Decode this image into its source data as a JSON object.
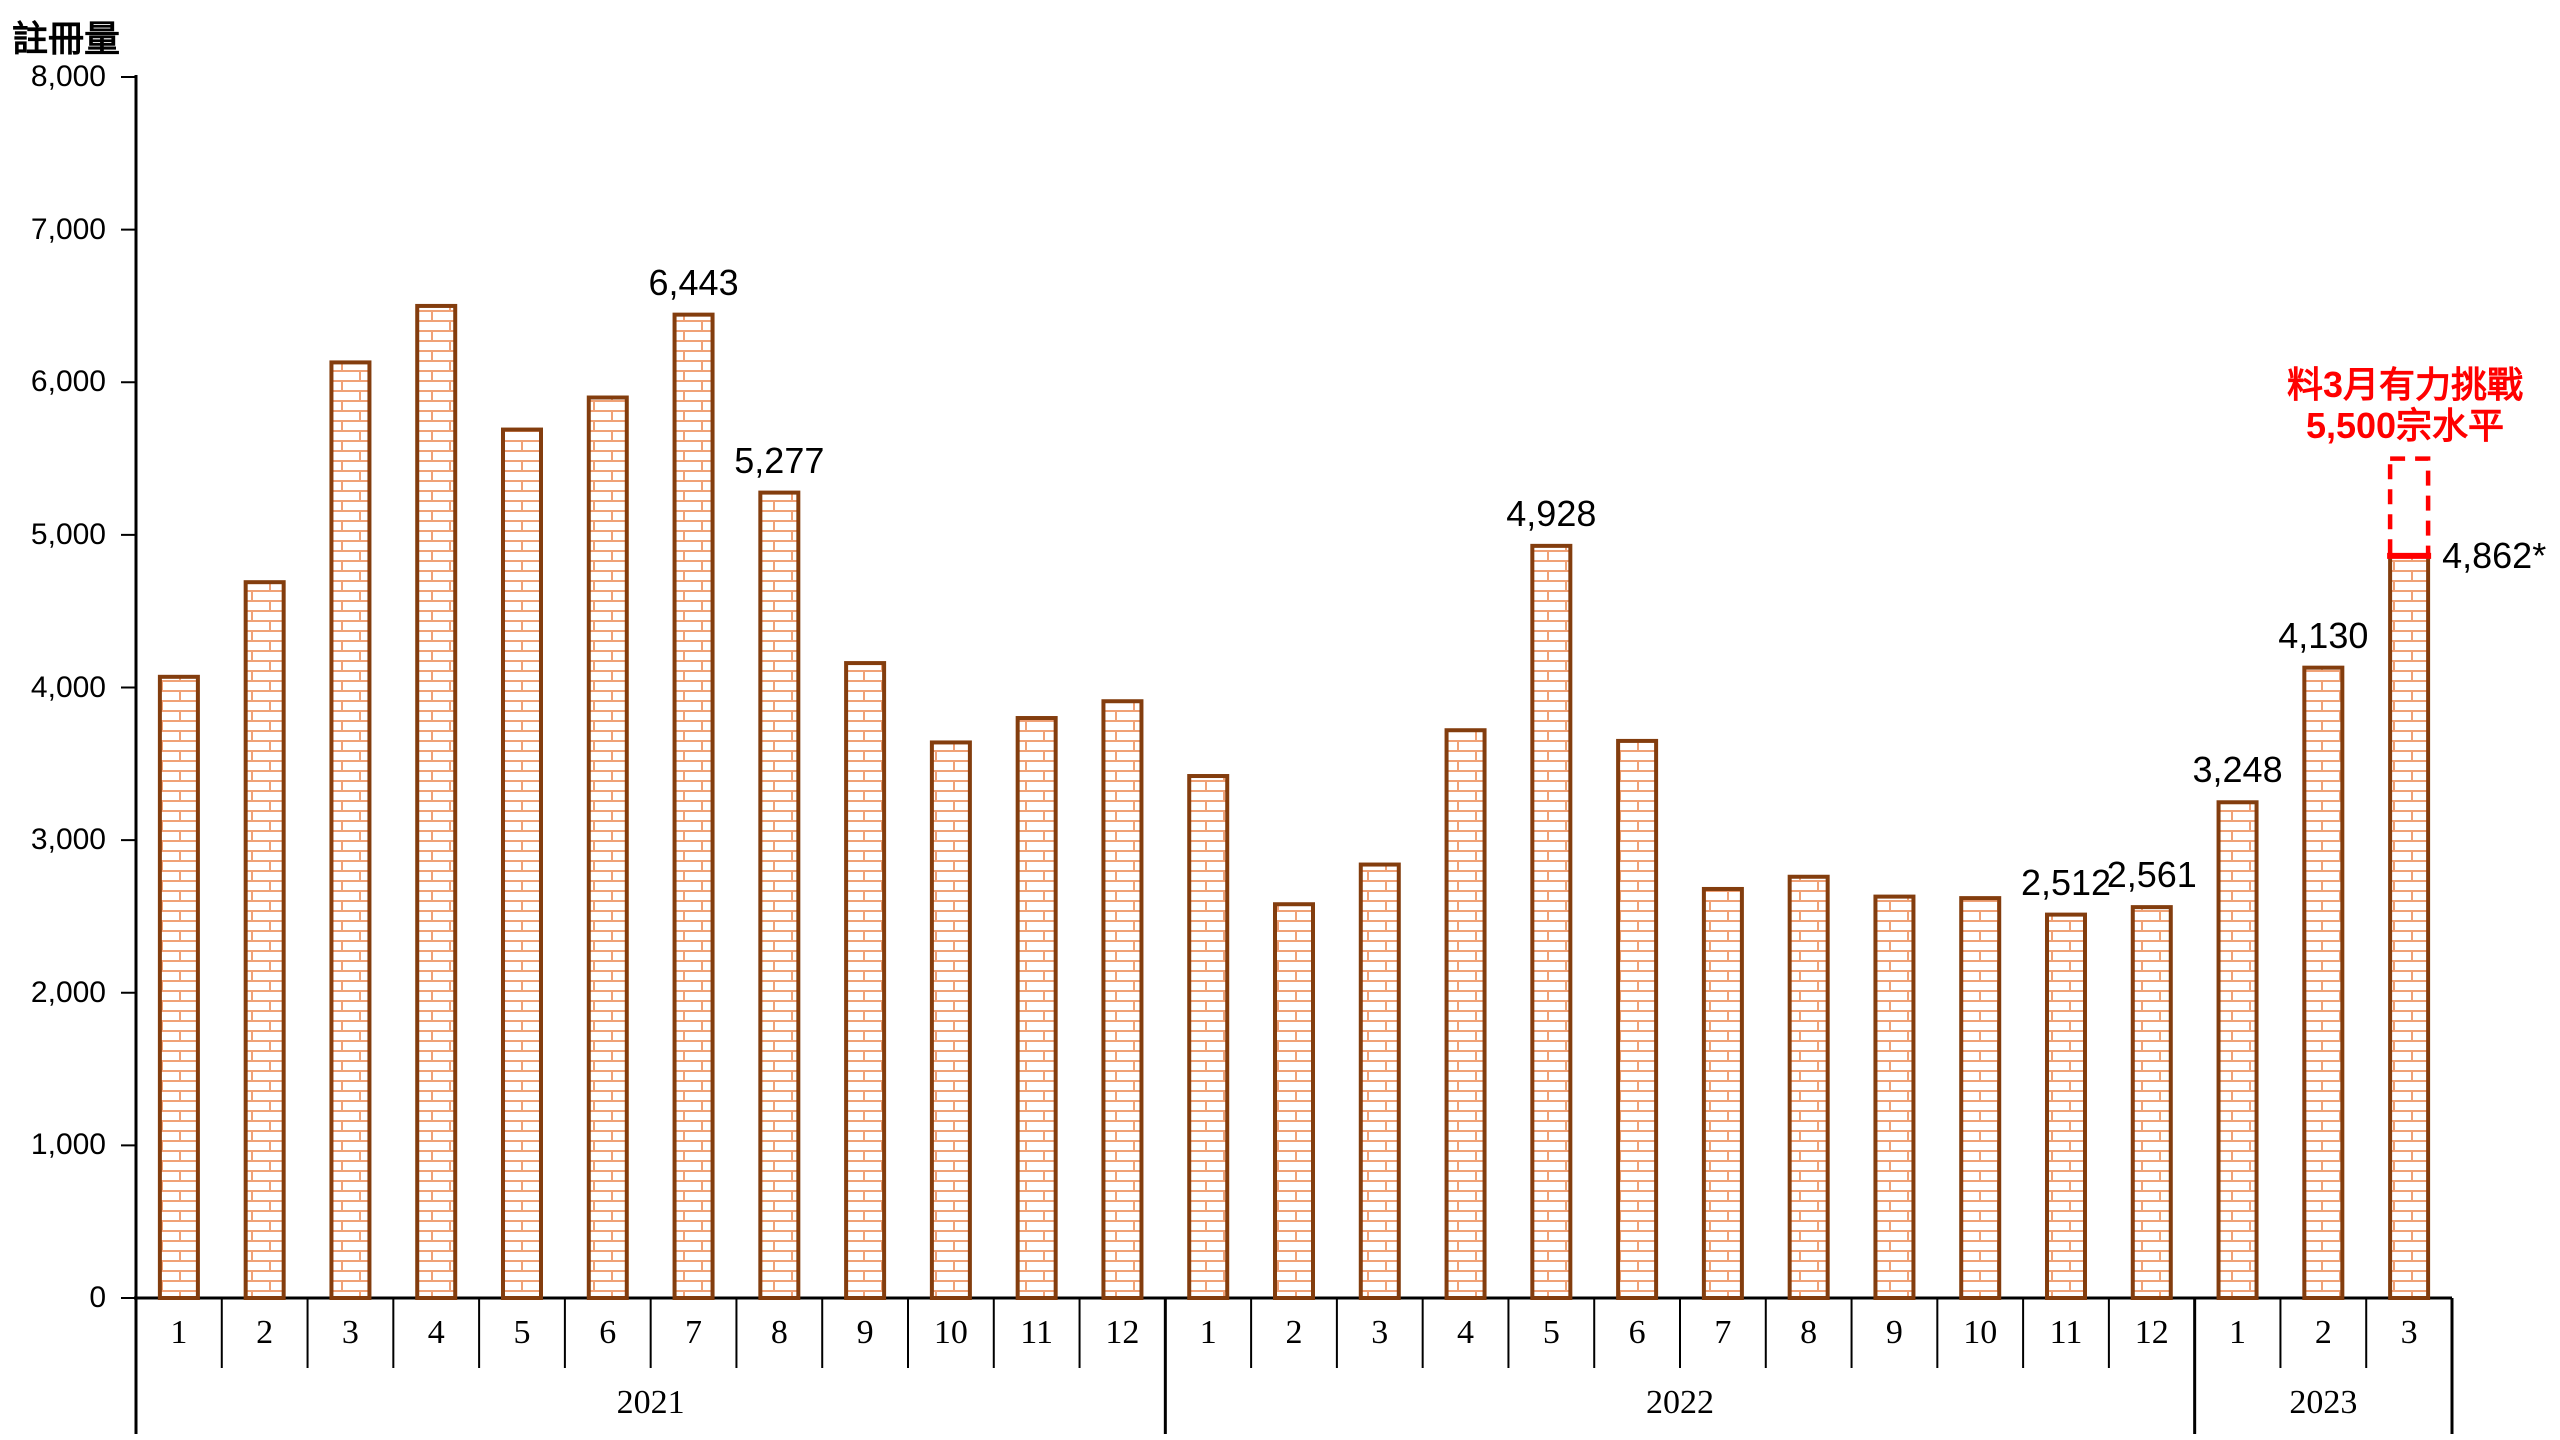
{
  "y_axis_title": "註冊量",
  "y_axis": {
    "tick_labels": [
      "0",
      "1,000",
      "2,000",
      "3,000",
      "4,000",
      "5,000",
      "6,000",
      "7,000",
      "8,000"
    ]
  },
  "chart_data": {
    "type": "bar",
    "ylabel": "註冊量",
    "ylim": [
      0,
      8000
    ],
    "ytick_interval": 1000,
    "grid": false,
    "legend": "none",
    "bar_texture": "brick",
    "groups": [
      {
        "year": "2021",
        "categories": [
          "1",
          "2",
          "3",
          "4",
          "5",
          "6",
          "7",
          "8",
          "9",
          "10",
          "11",
          "12"
        ],
        "values": [
          4070,
          4690,
          6130,
          6500,
          5690,
          5900,
          6443,
          5277,
          4160,
          3640,
          3800,
          3910
        ],
        "data_labels": [
          {
            "index": 6,
            "text": "6,443"
          },
          {
            "index": 7,
            "text": "5,277"
          }
        ]
      },
      {
        "year": "2022",
        "categories": [
          "1",
          "2",
          "3",
          "4",
          "5",
          "6",
          "7",
          "8",
          "9",
          "10",
          "11",
          "12"
        ],
        "values": [
          3420,
          2580,
          2840,
          3720,
          4928,
          3650,
          2680,
          2760,
          2630,
          2620,
          2512,
          2561
        ],
        "data_labels": [
          {
            "index": 4,
            "text": "4,928"
          },
          {
            "index": 10,
            "text": "2,512"
          },
          {
            "index": 11,
            "text": "2,561"
          }
        ]
      },
      {
        "year": "2023",
        "categories": [
          "1",
          "2",
          "3"
        ],
        "values": [
          3248,
          4130,
          4862
        ],
        "data_labels": [
          {
            "index": 0,
            "text": "3,248"
          },
          {
            "index": 1,
            "text": "4,130"
          },
          {
            "index": 2,
            "text": "4,862*",
            "placement": "right"
          }
        ]
      }
    ],
    "projection": {
      "target_level": 5500,
      "applies_to": "2023-3",
      "style": "red-dashed-outline"
    }
  },
  "annotation": {
    "line1": "料3月有力挑戰",
    "line2": "5,500宗水平"
  },
  "colors": {
    "bar_outline": "#833D0E",
    "brick_line": "#F0A176",
    "bar_fill": "#FFFFFF",
    "projection_red": "#FF0000",
    "axis": "#000000",
    "text": "#000000"
  }
}
